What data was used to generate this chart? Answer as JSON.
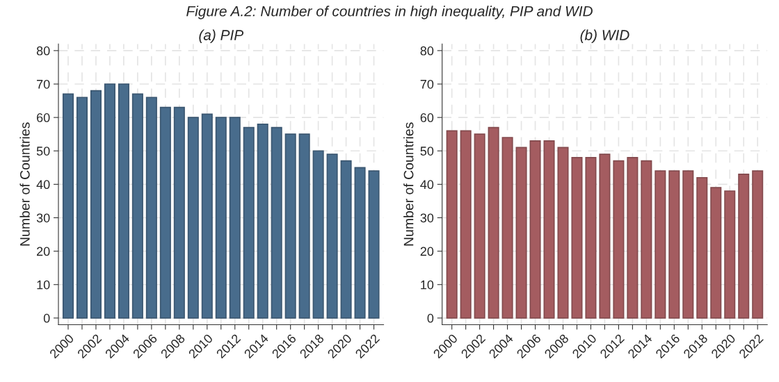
{
  "chart_data": [
    {
      "type": "bar",
      "title": "(a) PIP",
      "ylabel": "Number of Countries",
      "annotations": [
        "Figure A.2: Number of countries in high inequality, PIP and WID"
      ],
      "categories": [
        "2000",
        null,
        "2002",
        null,
        "2004",
        null,
        "2006",
        null,
        "2008",
        null,
        "2010",
        null,
        "2012",
        null,
        "2014",
        null,
        "2016",
        null,
        "2018",
        null,
        "2020",
        null,
        "2022"
      ],
      "values": [
        67,
        66,
        68,
        70,
        70,
        67,
        66,
        63,
        63,
        60,
        61,
        60,
        60,
        57,
        58,
        57,
        55,
        55,
        50,
        49,
        47,
        45,
        44
      ],
      "color": "#486c8c",
      "ylim": [
        -2,
        82
      ],
      "yticks": [
        0,
        10,
        20,
        30,
        40,
        50,
        60,
        70,
        80
      ],
      "grid": true
    },
    {
      "type": "bar",
      "title": "(b) WID",
      "ylabel": "Number of Countries",
      "categories": [
        "2000",
        null,
        "2002",
        null,
        "2004",
        null,
        "2006",
        null,
        "2008",
        null,
        "2010",
        null,
        "2012",
        null,
        "2014",
        null,
        "2016",
        null,
        "2018",
        null,
        "2020",
        null,
        "2022"
      ],
      "values": [
        56,
        56,
        55,
        57,
        54,
        51,
        53,
        53,
        51,
        48,
        48,
        49,
        47,
        48,
        47,
        44,
        44,
        44,
        42,
        39,
        38,
        43,
        44
      ],
      "color": "#a45c60",
      "ylim": [
        -2,
        82
      ],
      "yticks": [
        0,
        10,
        20,
        30,
        40,
        50,
        60,
        70,
        80
      ],
      "grid": true
    }
  ]
}
